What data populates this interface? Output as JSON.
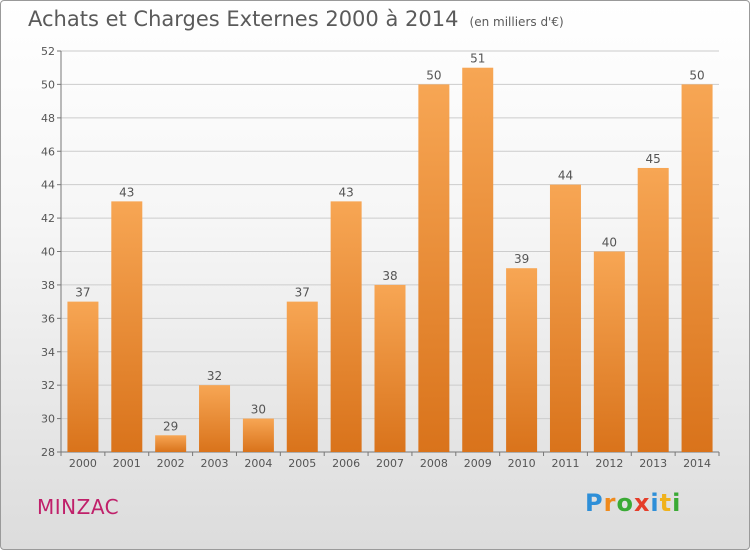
{
  "title": "Achats et Charges Externes 2000 à 2014",
  "unit": "(en milliers d'€)",
  "commune": "MINZAC",
  "brand": {
    "name": "Proxiti",
    "letters": [
      {
        "ch": "P",
        "color": "#2e8fd8"
      },
      {
        "ch": "r",
        "color": "#f08a1c"
      },
      {
        "ch": "o",
        "color": "#3aaa35"
      },
      {
        "ch": "x",
        "color": "#e53d2a"
      },
      {
        "ch": "i",
        "color": "#2e8fd8"
      },
      {
        "ch": "t",
        "color": "#f0b21c"
      },
      {
        "ch": "i",
        "color": "#3aaa35"
      }
    ]
  },
  "colors": {
    "bar_top": "#f7a654",
    "bar_bottom": "#d9731b",
    "grid": "#cccccc",
    "text": "#555555"
  },
  "chart_data": {
    "type": "bar",
    "categories": [
      "2000",
      "2001",
      "2002",
      "2003",
      "2004",
      "2005",
      "2006",
      "2007",
      "2008",
      "2009",
      "2010",
      "2011",
      "2012",
      "2013",
      "2014"
    ],
    "values": [
      37,
      43,
      29,
      32,
      30,
      37,
      43,
      38,
      50,
      51,
      39,
      44,
      40,
      45,
      50
    ],
    "ylim": [
      28,
      52
    ],
    "yticks": [
      28,
      30,
      32,
      34,
      36,
      38,
      40,
      42,
      44,
      46,
      48,
      50,
      52
    ],
    "grid": true,
    "data_labels": true
  }
}
